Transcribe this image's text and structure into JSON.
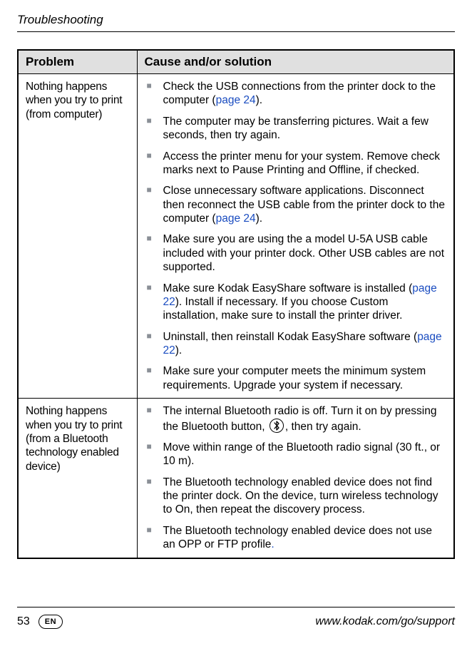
{
  "header": "Troubleshooting",
  "table": {
    "headers": {
      "problem": "Problem",
      "cause": "Cause and/or solution"
    },
    "rows": [
      {
        "problem": "Nothing happens when you try to print (from computer)",
        "items": [
          {
            "pre": "Check the USB connections from the printer dock to the computer (",
            "link": "page 24",
            "post": ")."
          },
          {
            "pre": "The computer may be transferring pictures. Wait a few seconds, then try again.",
            "link": "",
            "post": ""
          },
          {
            "pre": "Access the printer menu for your system. Remove check marks next to Pause Printing and Offline, if checked.",
            "link": "",
            "post": ""
          },
          {
            "pre": "Close unnecessary software applications. Disconnect then reconnect the USB cable from the printer dock to the computer (",
            "link": "page 24",
            "post": ")."
          },
          {
            "pre": "Make sure you are using the a model U-5A USB cable included with your printer dock. Other USB cables are not supported.",
            "link": "",
            "post": ""
          },
          {
            "pre": "Make sure Kodak EasyShare software is installed (",
            "link": "page 22",
            "post": "). Install if necessary. If you choose Custom installation, make sure to install the printer driver."
          },
          {
            "pre": "Uninstall, then reinstall Kodak EasyShare software (",
            "link": "page 22",
            "post": ")."
          },
          {
            "pre": "Make sure your computer meets the minimum system requirements. Upgrade your system if necessary.",
            "link": "",
            "post": ""
          }
        ]
      },
      {
        "problem": "Nothing happens when you try to print (from a Bluetooth technology enabled device)",
        "items": [
          {
            "special": "bt",
            "pre": "The internal Bluetooth radio is off. Turn it on by pressing the Bluetooth button, ",
            "post": ", then try again."
          },
          {
            "pre": "Move within range of the Bluetooth radio signal (30 ft., or 10 m).",
            "link": "",
            "post": ""
          },
          {
            "pre": "The Bluetooth technology enabled device does not find the printer dock. On the device, turn wireless technology to On, then repeat the discovery process.",
            "link": "",
            "post": ""
          },
          {
            "pre": "The Bluetooth technology enabled device does not use an OPP or FTP profile",
            "link": ".",
            "linkonly": true,
            "post": ""
          }
        ]
      }
    ]
  },
  "footer": {
    "page": "53",
    "lang": "EN",
    "url": "www.kodak.com/go/support"
  }
}
